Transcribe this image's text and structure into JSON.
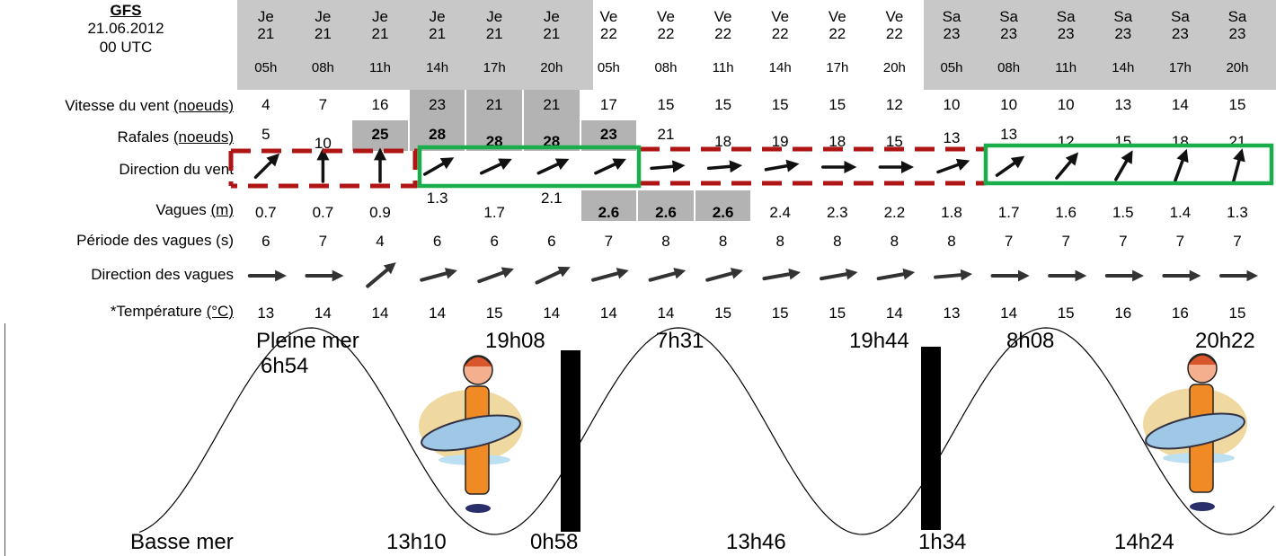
{
  "header": {
    "model": "GFS",
    "run_date": "21.06.2012",
    "run_time": "00 UTC"
  },
  "columns": [
    {
      "day": "Je",
      "date": "21",
      "hour": "05h",
      "shaded": true
    },
    {
      "day": "Je",
      "date": "21",
      "hour": "08h",
      "shaded": true
    },
    {
      "day": "Je",
      "date": "21",
      "hour": "11h",
      "shaded": true
    },
    {
      "day": "Je",
      "date": "21",
      "hour": "14h",
      "shaded": true
    },
    {
      "day": "Je",
      "date": "21",
      "hour": "17h",
      "shaded": true
    },
    {
      "day": "Je",
      "date": "21",
      "hour": "20h",
      "shaded": true
    },
    {
      "day": "Ve",
      "date": "22",
      "hour": "05h",
      "shaded": false
    },
    {
      "day": "Ve",
      "date": "22",
      "hour": "08h",
      "shaded": false
    },
    {
      "day": "Ve",
      "date": "22",
      "hour": "11h",
      "shaded": false
    },
    {
      "day": "Ve",
      "date": "22",
      "hour": "14h",
      "shaded": false
    },
    {
      "day": "Ve",
      "date": "22",
      "hour": "17h",
      "shaded": false
    },
    {
      "day": "Ve",
      "date": "22",
      "hour": "20h",
      "shaded": false
    },
    {
      "day": "Sa",
      "date": "23",
      "hour": "05h",
      "shaded": true
    },
    {
      "day": "Sa",
      "date": "23",
      "hour": "08h",
      "shaded": true
    },
    {
      "day": "Sa",
      "date": "23",
      "hour": "11h",
      "shaded": true
    },
    {
      "day": "Sa",
      "date": "23",
      "hour": "14h",
      "shaded": true
    },
    {
      "day": "Sa",
      "date": "23",
      "hour": "17h",
      "shaded": true
    },
    {
      "day": "Sa",
      "date": "23",
      "hour": "20h",
      "shaded": true
    }
  ],
  "rows": {
    "wind_speed": {
      "label": "Vitesse du vent ",
      "unit": "(noeuds)",
      "values": [
        "4",
        "7",
        "16",
        "23",
        "21",
        "21",
        "17",
        "15",
        "15",
        "15",
        "15",
        "12",
        "10",
        "10",
        "10",
        "13",
        "14",
        "15"
      ],
      "highlight": [
        false,
        false,
        false,
        true,
        true,
        true,
        false,
        false,
        false,
        false,
        false,
        false,
        false,
        false,
        false,
        false,
        false,
        false
      ]
    },
    "gusts": {
      "label": "Rafales ",
      "unit": "(noeuds)",
      "values": [
        "5",
        "10",
        "25",
        "28",
        "28",
        "28",
        "23",
        "21",
        "18",
        "19",
        "18",
        "15",
        "13",
        "13",
        "12",
        "15",
        "18",
        "21"
      ],
      "highlight": [
        false,
        false,
        true,
        true,
        true,
        true,
        true,
        false,
        false,
        false,
        false,
        false,
        false,
        false,
        false,
        false,
        false,
        false
      ]
    },
    "wind_direction": {
      "label": "Direction du vent",
      "arrows_deg": [
        45,
        0,
        0,
        60,
        65,
        65,
        65,
        85,
        85,
        80,
        90,
        90,
        70,
        55,
        40,
        30,
        20,
        15
      ]
    },
    "waves": {
      "label": "Vagues ",
      "unit": "(m)",
      "values": [
        "0.7",
        "0.7",
        "0.9",
        "1.3",
        "1.7",
        "2.1",
        "2.6",
        "2.6",
        "2.6",
        "2.4",
        "2.3",
        "2.2",
        "1.8",
        "1.7",
        "1.6",
        "1.5",
        "1.4",
        "1.3"
      ],
      "highlight": [
        false,
        false,
        false,
        false,
        false,
        false,
        true,
        true,
        true,
        false,
        false,
        false,
        false,
        false,
        false,
        false,
        false,
        false
      ]
    },
    "wave_period": {
      "label": "Période des vagues (s)",
      "values": [
        "6",
        "7",
        "4",
        "6",
        "6",
        "6",
        "7",
        "8",
        "8",
        "8",
        "8",
        "8",
        "8",
        "7",
        "7",
        "7",
        "7",
        "7"
      ]
    },
    "wave_direction": {
      "label": "Direction des vagues",
      "arrows_deg": [
        90,
        90,
        50,
        75,
        70,
        65,
        75,
        75,
        75,
        80,
        80,
        80,
        85,
        90,
        90,
        90,
        90,
        90
      ]
    },
    "temperature": {
      "label": "*Température ",
      "unit": "(°C)",
      "values": [
        "13",
        "14",
        "14",
        "14",
        "15",
        "14",
        "14",
        "14",
        "15",
        "15",
        "15",
        "14",
        "13",
        "14",
        "15",
        "16",
        "16",
        "15"
      ]
    }
  },
  "tides": {
    "high_label": "Pleine mer",
    "low_label": "Basse mer",
    "high_times": [
      "6h54",
      "19h08",
      "7h31",
      "19h44",
      "8h08",
      "20h22"
    ],
    "low_times": [
      "13h10",
      "0h58",
      "13h46",
      "1h34",
      "14h24"
    ]
  },
  "colors": {
    "shade": "#c8c8c8",
    "highlight": "#b3b3b3",
    "good_box": "#1aad4b",
    "bad_box": "#b01515"
  },
  "icons": [
    "surfer-icon",
    "wind-arrow-icon",
    "wave-arrow-icon"
  ]
}
